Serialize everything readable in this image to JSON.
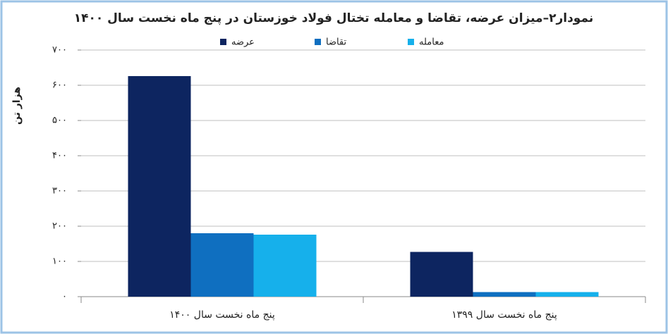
{
  "chart_data": {
    "type": "bar",
    "title": "نمودار۲–میزان عرضه، تقاضا و معامله تختال فولاد خوزستان در پنج ماه نخست سال ۱۴۰۰",
    "y_label": "هزار تن",
    "categories": [
      "پنج ماه نخست سال ۱۴۰۰",
      "پنج ماه نخست سال ۱۳۹۹"
    ],
    "series": [
      {
        "name": "عرضه",
        "color": "#0d2560",
        "values": [
          626,
          127
        ]
      },
      {
        "name": "تقاضا",
        "color": "#0f6fc0",
        "values": [
          180,
          13
        ]
      },
      {
        "name": "معامله",
        "color": "#16b0eb",
        "values": [
          176,
          13
        ]
      }
    ],
    "ylim": [
      0,
      700
    ],
    "yticks": [
      {
        "value": 0,
        "label": "۰"
      },
      {
        "value": 100,
        "label": "۱۰۰"
      },
      {
        "value": 200,
        "label": "۲۰۰"
      },
      {
        "value": 300,
        "label": "۳۰۰"
      },
      {
        "value": 400,
        "label": "۴۰۰"
      },
      {
        "value": 500,
        "label": "۵۰۰"
      },
      {
        "value": 600,
        "label": "۶۰۰"
      },
      {
        "value": 700,
        "label": "۷۰۰"
      }
    ],
    "grid": true
  }
}
